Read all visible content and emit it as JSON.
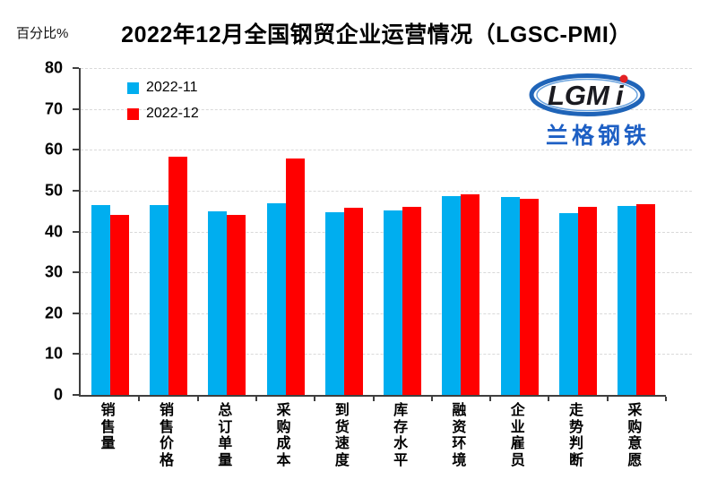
{
  "chart_data": {
    "type": "bar",
    "title": "2022年12月全国钢贸企业运营情况（LGSC-PMI）",
    "ylabel": "百分比%",
    "categories": [
      "销售量",
      "销售价格",
      "总订单量",
      "采购成本",
      "到货速度",
      "库存水平",
      "融资环境",
      "企业雇员",
      "走势判断",
      "采购意愿"
    ],
    "series": [
      {
        "name": "2022-11",
        "color": "#00AEEF",
        "values": [
          46.4,
          46.4,
          45.0,
          46.9,
          44.8,
          45.2,
          48.6,
          48.4,
          44.5,
          46.2
        ]
      },
      {
        "name": "2022-12",
        "color": "#FF0000",
        "values": [
          44.1,
          58.3,
          44.0,
          57.8,
          45.9,
          46.0,
          49.0,
          47.9,
          46.1,
          46.6
        ]
      }
    ],
    "ylim": [
      0,
      80
    ],
    "ytick_interval": 10,
    "grid": "horizontal-dashed",
    "legend_position": "top-left-inside"
  },
  "logo": {
    "text_main": "LGM",
    "text_i": "i",
    "subtext": "兰格钢铁",
    "ellipse_color": "#1f64b8",
    "inner_ring_color": "#6ba3dd",
    "letter_color": "#1a1a20",
    "accent_color": "#e32124",
    "subtext_color": "#1d5fc4"
  },
  "colors": {
    "background": "#ffffff",
    "axis": "#3f3f3f",
    "grid": "#d9d9d9",
    "title_text": "#000000"
  }
}
